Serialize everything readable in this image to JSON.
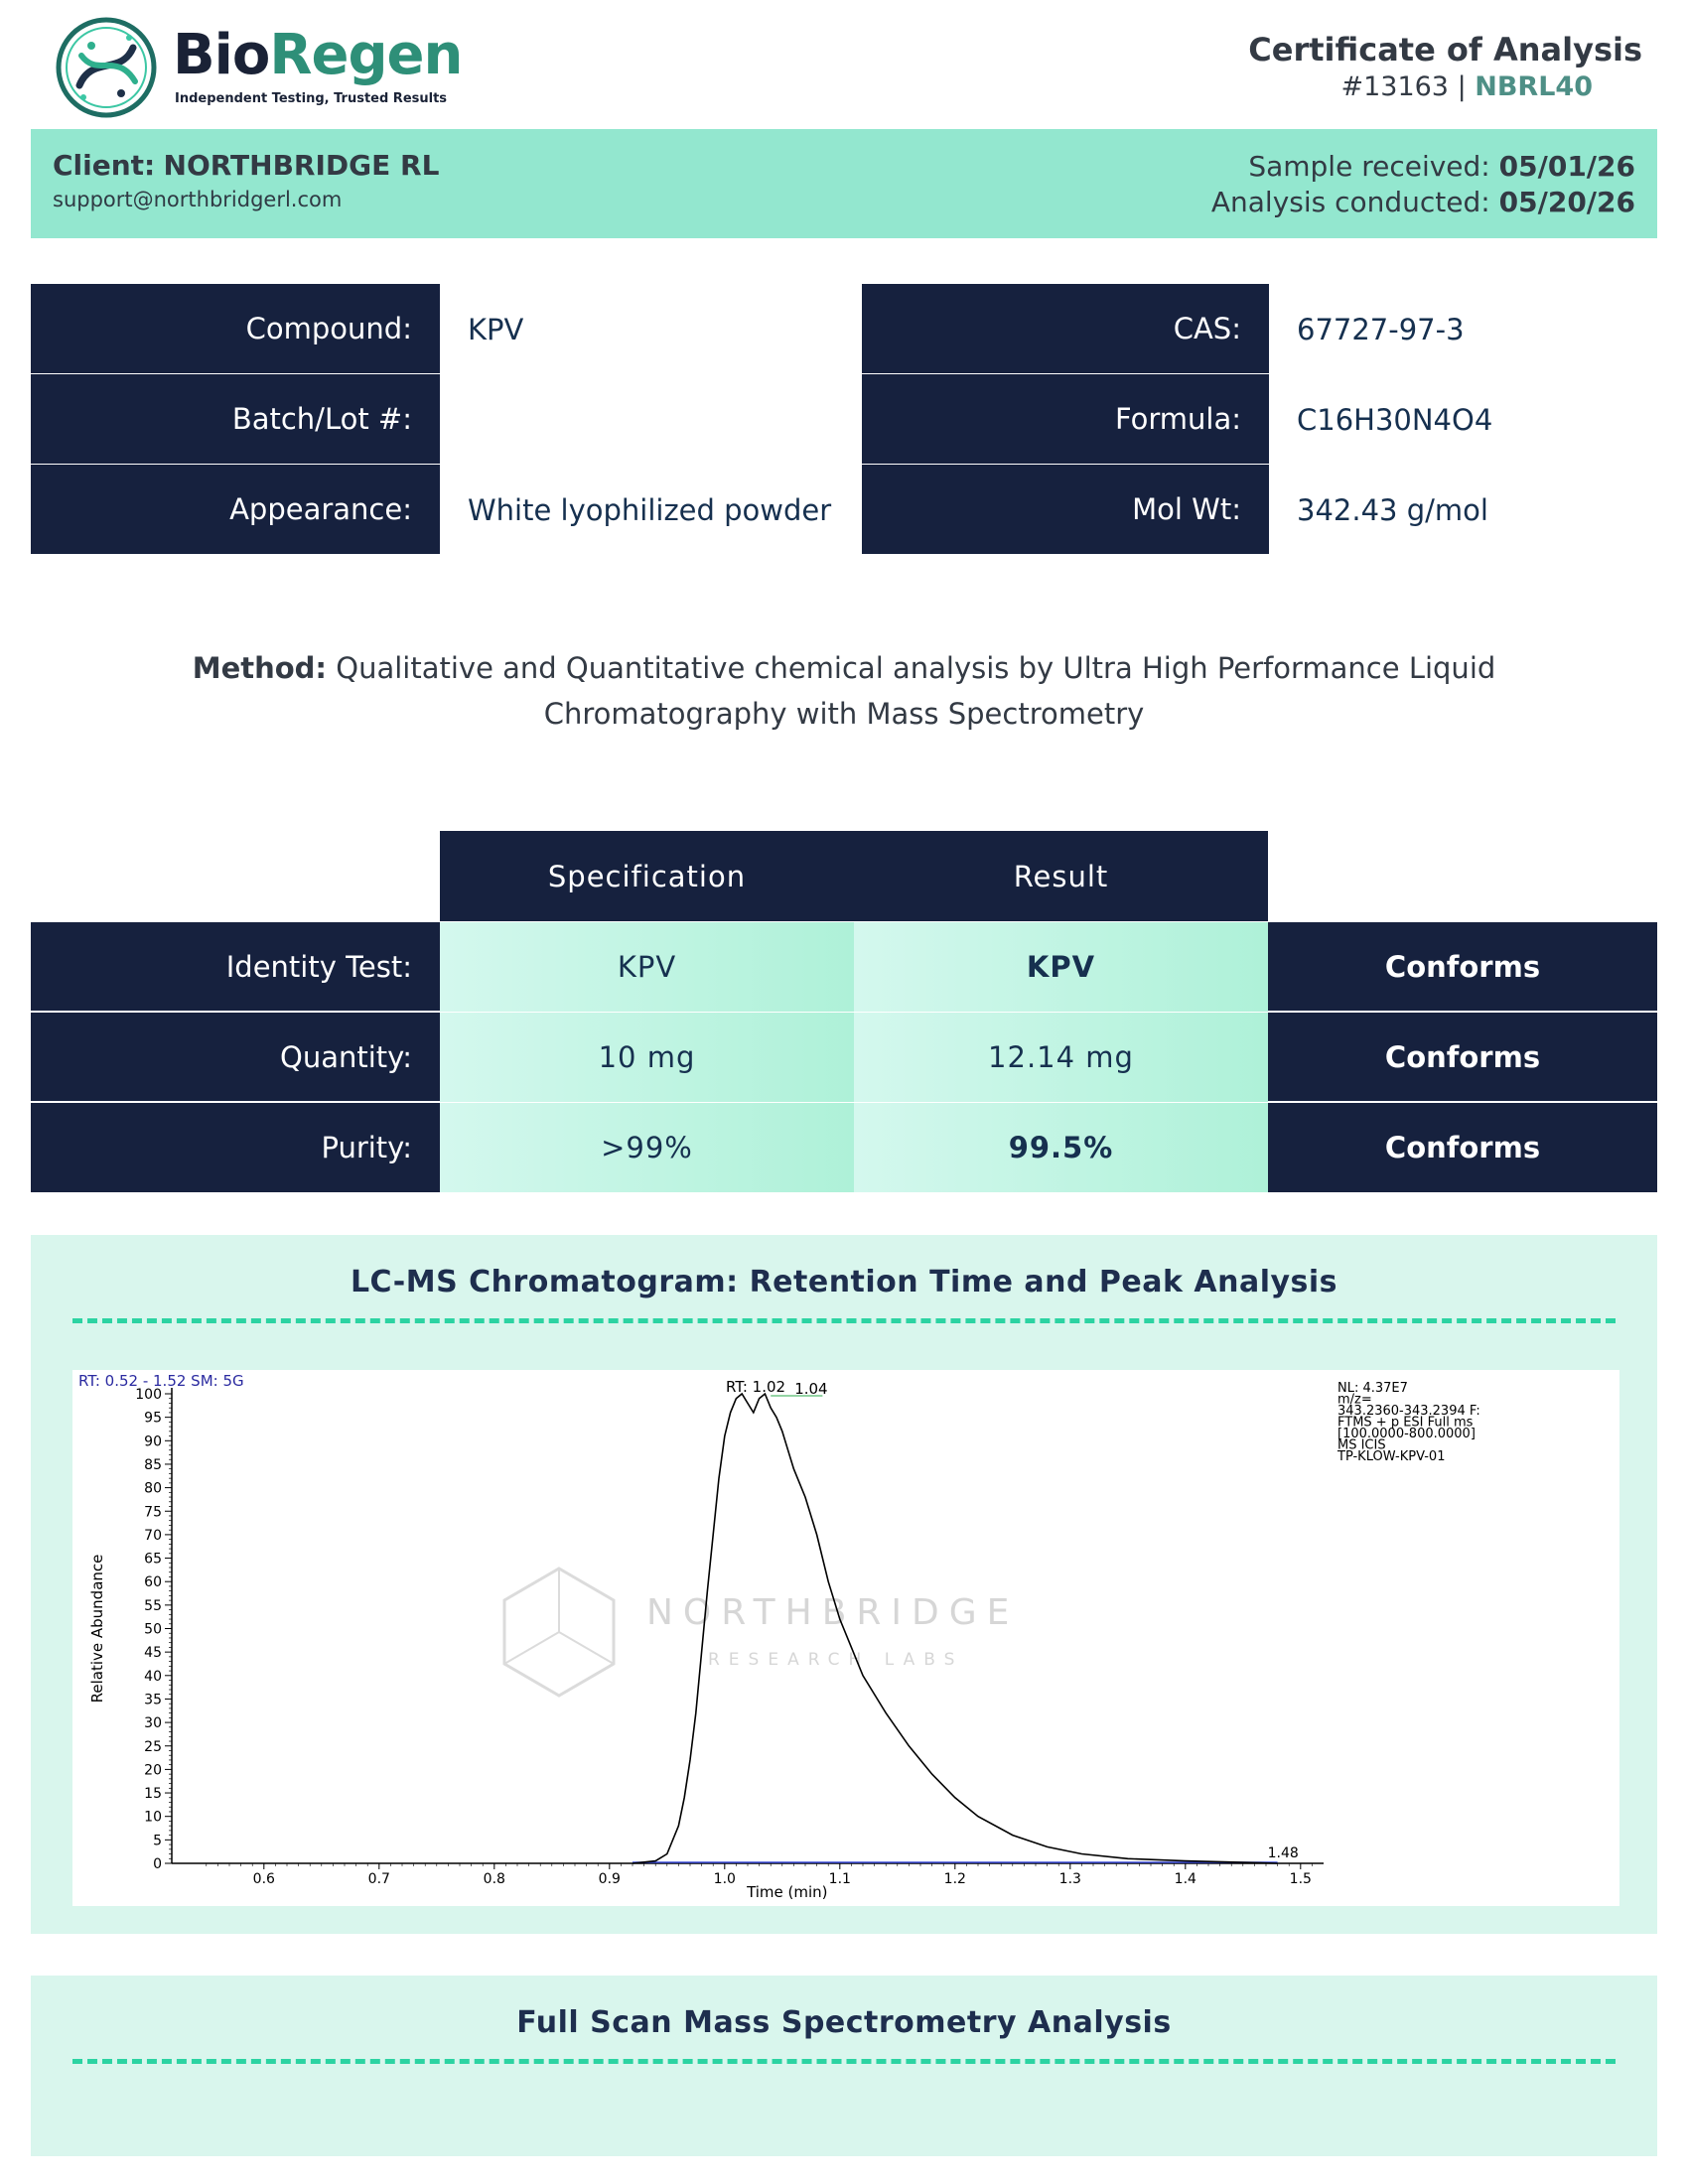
{
  "header": {
    "brand_part1": "Bio",
    "brand_part2": "Regen",
    "tagline": "Independent Testing, Trusted Results",
    "coa_title": "Certificate of Analysis",
    "coa_number": "#13163",
    "coa_separator": " | ",
    "coa_code": "NBRL40"
  },
  "client": {
    "label": "Client:",
    "name": "NORTHBRIDGE RL",
    "email": "support@northbridgerl.com",
    "received_label": "Sample received:",
    "received_date": "05/01/26",
    "analysis_label": "Analysis conducted:",
    "analysis_date": "05/20/26"
  },
  "info": {
    "left": [
      {
        "label": "Compound:",
        "value": "KPV"
      },
      {
        "label": "Batch/Lot #:",
        "value": ""
      },
      {
        "label": "Appearance:",
        "value": "White lyophilized powder"
      }
    ],
    "right": [
      {
        "label": "CAS:",
        "value": "67727-97-3"
      },
      {
        "label": "Formula:",
        "value": "C16H30N4O4"
      },
      {
        "label": "Mol Wt:",
        "value": "342.43 g/mol"
      }
    ]
  },
  "method": {
    "label": "Method:",
    "text": "Qualitative and Quantitative chemical analysis by Ultra High Performance Liquid Chromatography with Mass Spectrometry"
  },
  "results": {
    "headers": [
      "Specification",
      "Result"
    ],
    "rows": [
      {
        "label": "Identity Test:",
        "spec": "KPV",
        "result": "KPV",
        "status": "Conforms"
      },
      {
        "label": "Quantity:",
        "spec": "10 mg",
        "result": "12.14 mg",
        "status": "Conforms"
      },
      {
        "label": "Purity:",
        "spec": ">99%",
        "result": "99.5%",
        "status": "Conforms"
      }
    ]
  },
  "chromatogram_section": {
    "title": "LC-MS Chromatogram: Retention Time and Peak Analysis"
  },
  "mass_spec_section": {
    "title": "Full Scan Mass Spectrometry Analysis"
  },
  "watermark": {
    "name": "NORTHBRIDGE",
    "sub": "RESEARCH LABS"
  },
  "chart_data": {
    "type": "line",
    "header_left": "RT: 0.52 - 1.52   SM: 5G",
    "peak_label": "RT: 1.02",
    "peak_label_2": "1.04",
    "end_label": "1.48",
    "info_lines": [
      "NL: 4.37E7",
      "m/z=",
      "343.2360-343.2394 F:",
      "FTMS + p ESI Full ms",
      "[100.0000-800.0000]",
      "MS  ICIS",
      "TP-KLOW-KPV-01"
    ],
    "xlabel": "Time (min)",
    "ylabel": "Relative Abundance",
    "xlim": [
      0.52,
      1.52
    ],
    "ylim": [
      0,
      100
    ],
    "x_ticks": [
      0.6,
      0.7,
      0.8,
      0.9,
      1.0,
      1.1,
      1.2,
      1.3,
      1.4,
      1.5
    ],
    "x_tick_labels": [
      "0.6",
      "0.7",
      "0.8",
      "0.9",
      "1.0",
      "1.1",
      "1.2",
      "1.3",
      "1.4",
      "1.5"
    ],
    "y_ticks": [
      0,
      5,
      10,
      15,
      20,
      25,
      30,
      35,
      40,
      45,
      50,
      55,
      60,
      65,
      70,
      75,
      80,
      85,
      90,
      95,
      100
    ],
    "series": [
      {
        "x": [
          0.92,
          0.94,
          0.95,
          0.96,
          0.965,
          0.97,
          0.975,
          0.98,
          0.985,
          0.99,
          0.995,
          1.0,
          1.005,
          1.01,
          1.015,
          1.02,
          1.025,
          1.03,
          1.035,
          1.04,
          1.045,
          1.05,
          1.055,
          1.06,
          1.07,
          1.08,
          1.09,
          1.1,
          1.12,
          1.14,
          1.16,
          1.18,
          1.2,
          1.22,
          1.25,
          1.28,
          1.31,
          1.35,
          1.4,
          1.45,
          1.48
        ],
        "y": [
          0,
          0.5,
          2,
          8,
          14,
          22,
          32,
          45,
          58,
          70,
          82,
          91,
          96,
          99,
          100,
          98,
          96,
          99,
          100,
          97,
          95,
          92,
          88,
          84,
          78,
          70,
          60,
          52,
          40,
          32,
          25,
          19,
          14,
          10,
          6,
          3.5,
          2,
          1,
          0.5,
          0.2,
          0
        ]
      }
    ]
  }
}
